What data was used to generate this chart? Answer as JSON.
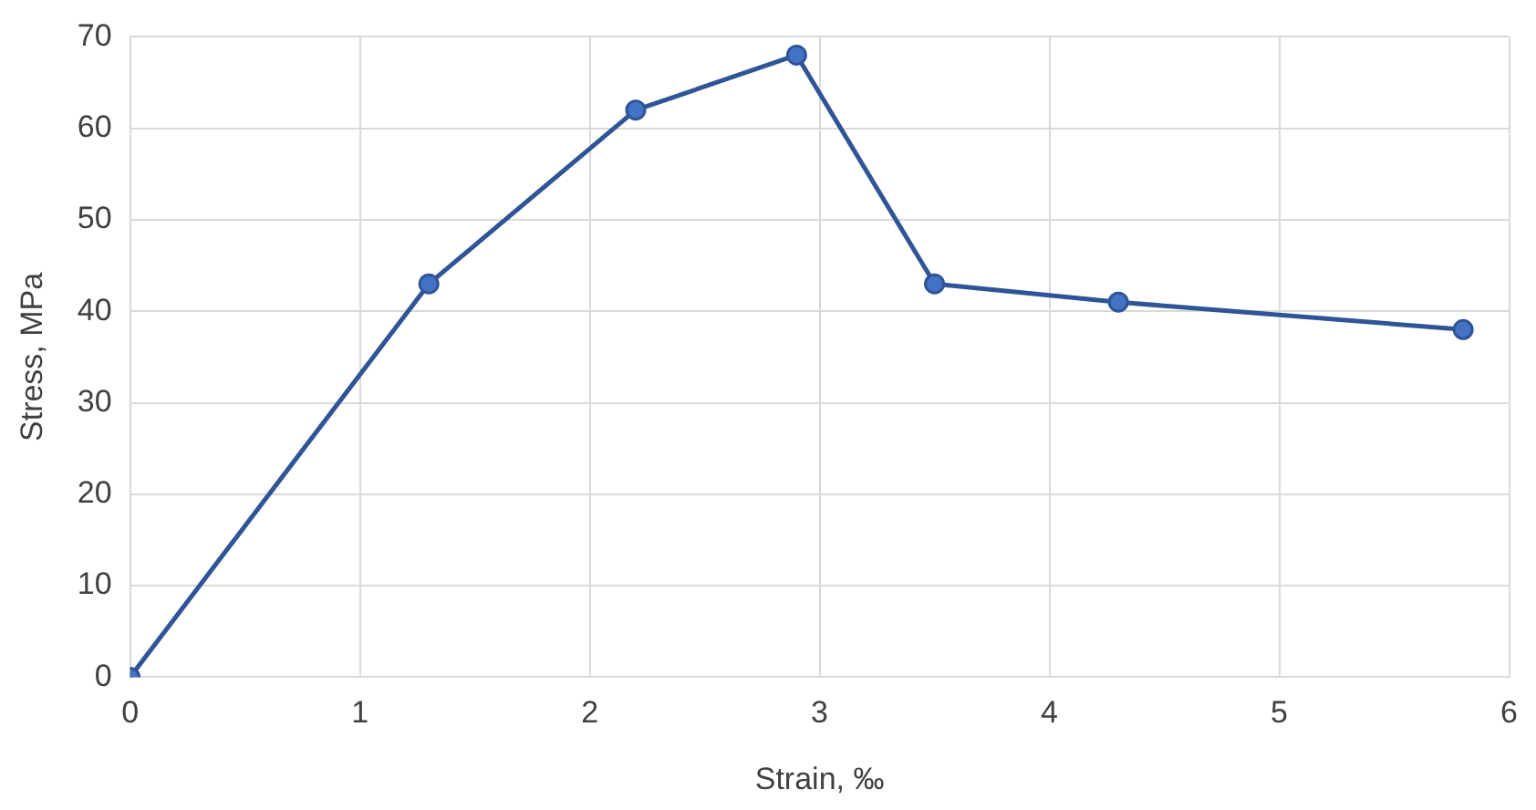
{
  "chart_data": {
    "type": "line",
    "xlabel": "Strain, ‰",
    "ylabel": "Stress, MPa",
    "x": [
      0,
      1.3,
      2.2,
      2.9,
      3.5,
      4.3,
      5.8
    ],
    "series": [
      {
        "color": "#2f5597",
        "values": [
          0,
          43,
          62,
          68,
          43,
          41,
          38
        ]
      }
    ],
    "xlim": [
      0,
      6
    ],
    "xticks": [
      0,
      1,
      2,
      3,
      4,
      5,
      6
    ],
    "ylim": [
      0,
      70
    ],
    "yticks": [
      0,
      10,
      20,
      30,
      40,
      50,
      60,
      70
    ],
    "grid": true,
    "legend": false,
    "marker": "circle",
    "line_style": "solid"
  }
}
